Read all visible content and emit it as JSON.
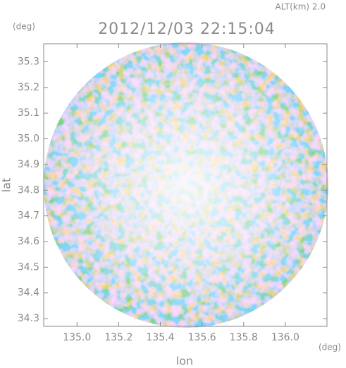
{
  "chart_data": {
    "type": "radar-map",
    "title": "2012/12/03 22:15:04",
    "annotation": "ALT(km) 2.0",
    "x_label": "lon",
    "x_unit": "(deg)",
    "y_label": "lat",
    "y_unit": "(deg)",
    "xlim": [
      134.84,
      136.2
    ],
    "ylim": [
      34.27,
      35.37
    ],
    "xticks": [
      {
        "value": 135,
        "label": "135.0"
      },
      135.2,
      135.4,
      135.6,
      135.8,
      {
        "value": 136,
        "label": "136.0"
      }
    ],
    "yticks": [
      34.3,
      34.4,
      34.5,
      34.6,
      34.7,
      34.8,
      34.9,
      {
        "value": 35,
        "label": "35.0"
      },
      35.1,
      35.2,
      35.3
    ]
  }
}
